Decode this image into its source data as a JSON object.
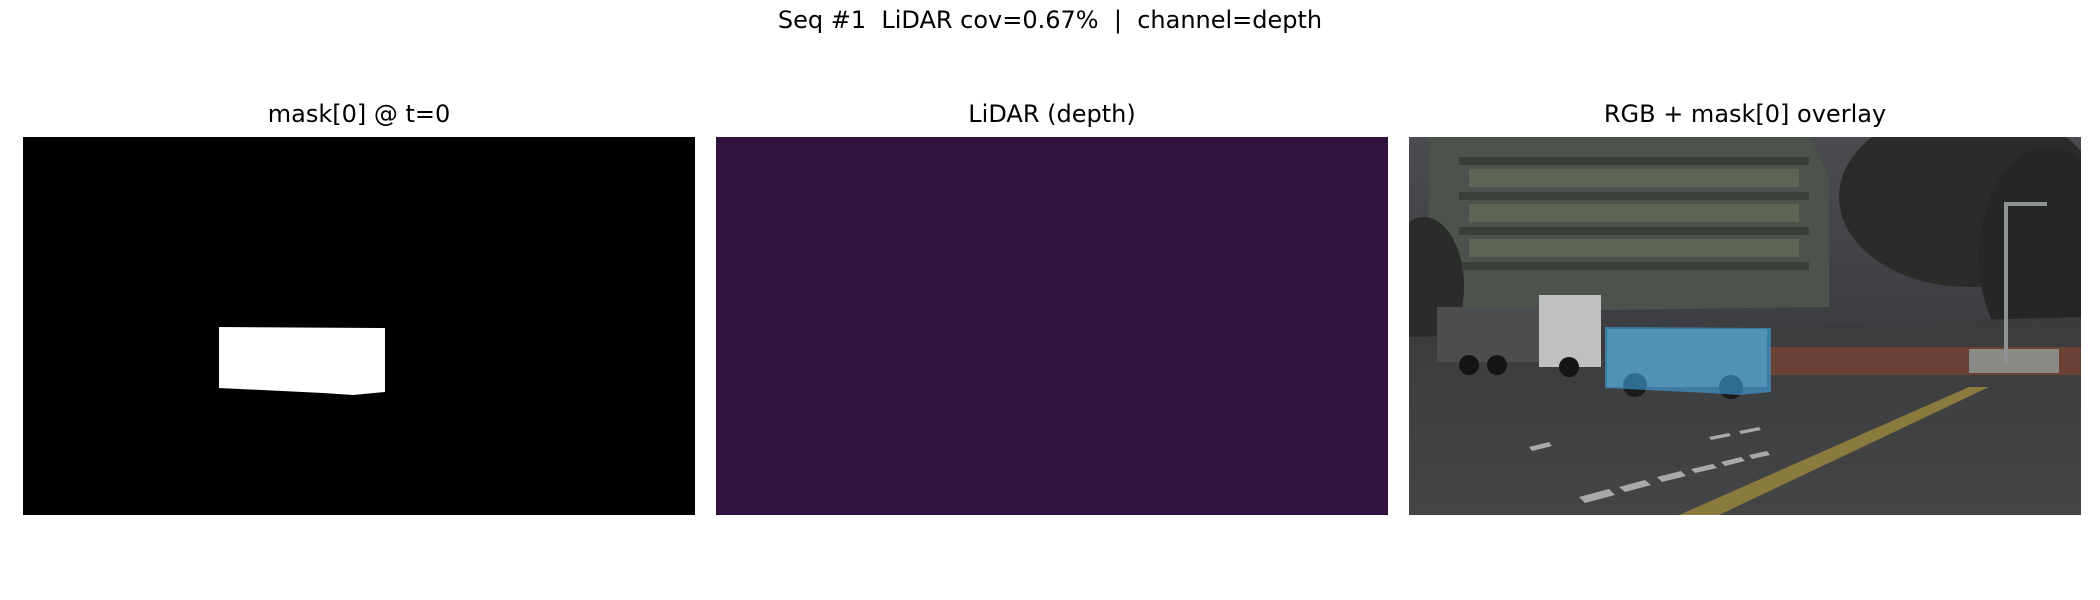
{
  "figure": {
    "suptitle": "Seq #1  LiDAR cov=0.67%  |  channel=depth"
  },
  "panels": [
    {
      "title": "mask[0] @ t=0"
    },
    {
      "title": "LiDAR (depth)"
    },
    {
      "title": "RGB + mask[0] overlay"
    }
  ],
  "colors": {
    "mask_background": "#000000",
    "mask_foreground": "#ffffff",
    "lidar_background": "#33133d",
    "overlay_tint": "#3fa3e3"
  }
}
